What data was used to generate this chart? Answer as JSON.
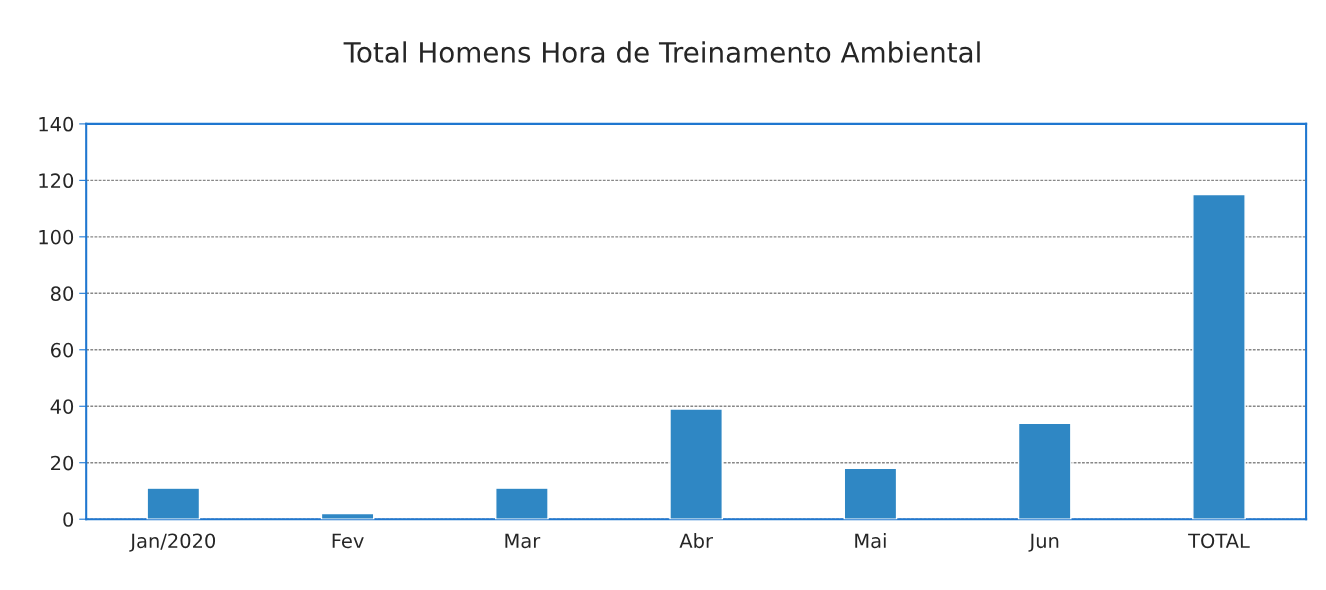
{
  "chart_data": {
    "type": "bar",
    "title": "Total Homens Hora de Treinamento Ambiental",
    "categories": [
      "Jan/2020",
      "Fev",
      "Mar",
      "Abr",
      "Mai",
      "Jun",
      "TOTAL"
    ],
    "values": [
      11,
      2,
      11,
      39,
      18,
      34,
      115
    ],
    "color": "#2f87c4",
    "ylim": [
      0,
      140
    ],
    "yticks": [
      0,
      20,
      40,
      60,
      80,
      100,
      120,
      140
    ],
    "grid": "y"
  }
}
